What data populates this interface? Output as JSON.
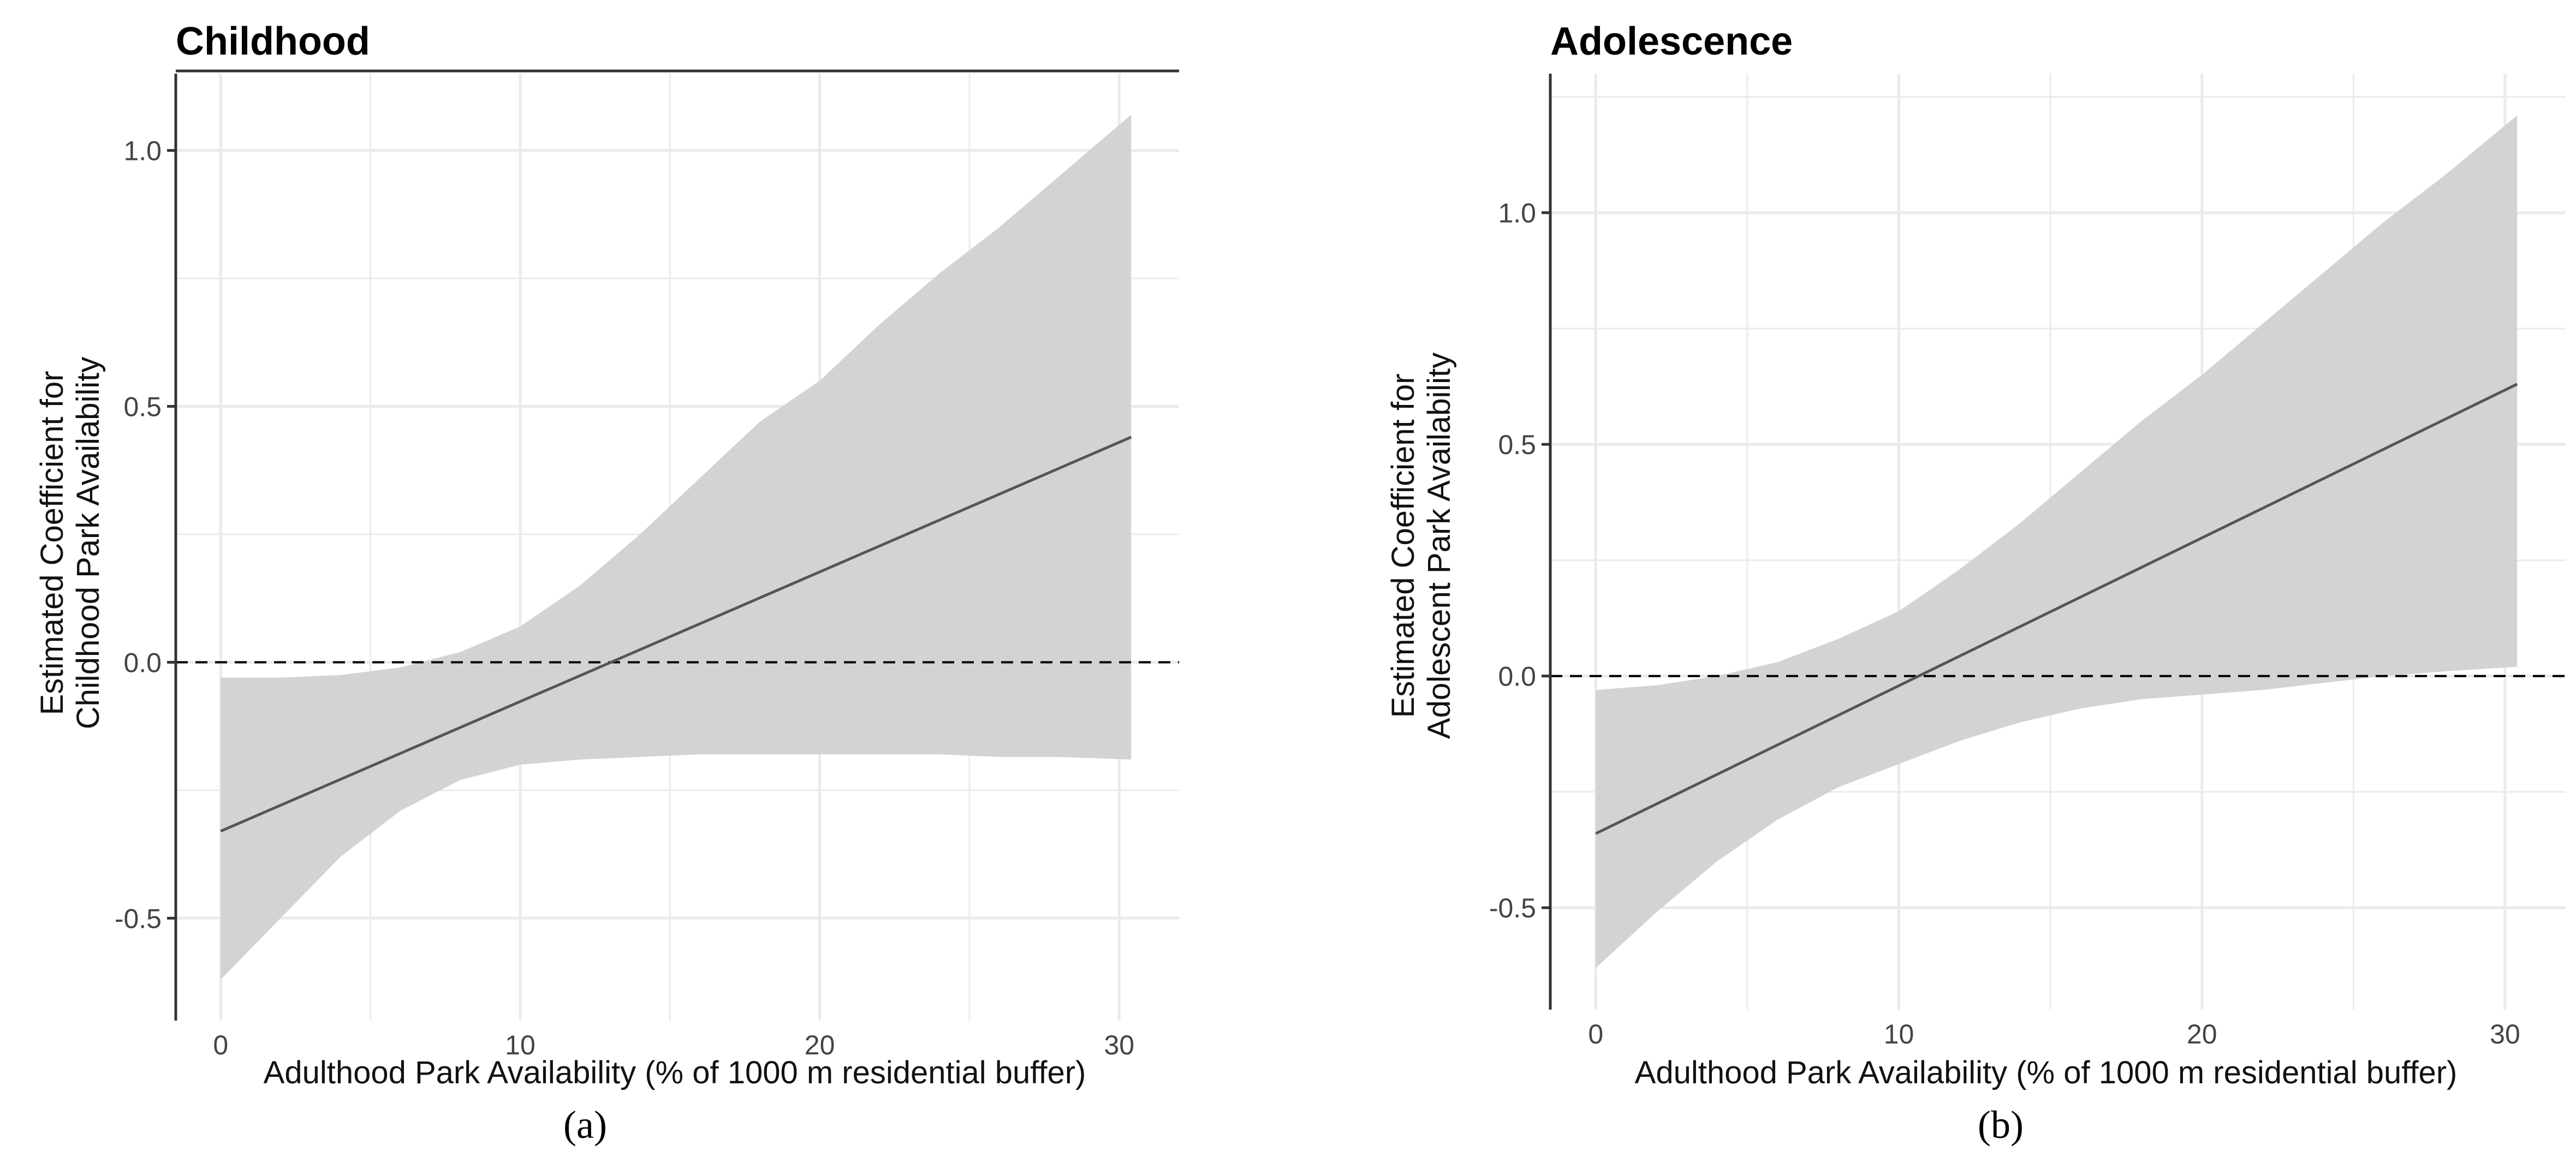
{
  "chart_data": [
    {
      "type": "line",
      "panel_label_letter": "a",
      "title": "Childhood",
      "xlabel": "Adulthood Park Availability (% of 1000 m residential buffer)",
      "ylabel_lines": [
        "Estimated Coefficient for",
        "Childhood Park Availability"
      ],
      "xlim": [
        -1.5,
        32
      ],
      "ylim": [
        -0.7,
        1.15
      ],
      "xticks": [
        0,
        10,
        20,
        30
      ],
      "xtick_labels": [
        "0",
        "10",
        "20",
        "30"
      ],
      "yticks": [
        -0.5,
        0.0,
        0.5,
        1.0
      ],
      "ytick_labels": [
        "-0.5",
        "0.0",
        "0.5",
        "1.0"
      ],
      "reference_line_y": 0.0,
      "series": [
        {
          "name": "estimate",
          "x": [
            0,
            30.4
          ],
          "y": [
            -0.33,
            0.44
          ]
        }
      ],
      "band": {
        "x": [
          0,
          2,
          4,
          6,
          8,
          10,
          12,
          14,
          16,
          18,
          20,
          22,
          24,
          26,
          28,
          30.4
        ],
        "lower": [
          -0.62,
          -0.5,
          -0.38,
          -0.29,
          -0.23,
          -0.2,
          -0.19,
          -0.185,
          -0.18,
          -0.18,
          -0.18,
          -0.18,
          -0.18,
          -0.185,
          -0.185,
          -0.19
        ],
        "upper": [
          -0.03,
          -0.03,
          -0.025,
          -0.01,
          0.02,
          0.07,
          0.15,
          0.25,
          0.36,
          0.47,
          0.55,
          0.66,
          0.76,
          0.85,
          0.95,
          1.07
        ]
      },
      "colors": {
        "band": "#d3d3d3",
        "line": "#555555",
        "grid": "#ebebeb",
        "axis": "#333333"
      }
    },
    {
      "type": "line",
      "panel_label_letter": "b",
      "title": "Adolescence",
      "xlabel": "Adulthood Park Availability (% of 1000 m residential buffer)",
      "ylabel_lines": [
        "Estimated Coefficient for",
        "Adolescent Park Availability"
      ],
      "xlim": [
        -1.5,
        32
      ],
      "ylim": [
        -0.72,
        1.3
      ],
      "xticks": [
        0,
        10,
        20,
        30
      ],
      "xtick_labels": [
        "0",
        "10",
        "20",
        "30"
      ],
      "yticks": [
        -0.5,
        0.0,
        0.5,
        1.0
      ],
      "ytick_labels": [
        "-0.5",
        "0.0",
        "0.5",
        "1.0"
      ],
      "reference_line_y": 0.0,
      "series": [
        {
          "name": "estimate",
          "x": [
            0,
            30.4
          ],
          "y": [
            -0.34,
            0.63
          ]
        }
      ],
      "band": {
        "x": [
          0,
          2,
          4,
          6,
          8,
          10,
          12,
          14,
          16,
          18,
          20,
          22,
          24,
          26,
          28,
          30.4
        ],
        "lower": [
          -0.63,
          -0.51,
          -0.4,
          -0.31,
          -0.24,
          -0.19,
          -0.14,
          -0.1,
          -0.07,
          -0.05,
          -0.04,
          -0.03,
          -0.015,
          0.0,
          0.01,
          0.02
        ],
        "upper": [
          -0.03,
          -0.02,
          0.0,
          0.03,
          0.08,
          0.14,
          0.23,
          0.33,
          0.44,
          0.55,
          0.65,
          0.76,
          0.87,
          0.98,
          1.08,
          1.21
        ]
      },
      "colors": {
        "band": "#d3d3d3",
        "line": "#555555",
        "grid": "#ebebeb",
        "axis": "#333333"
      }
    }
  ],
  "panel_labels": [
    "(a)",
    "(b)"
  ]
}
